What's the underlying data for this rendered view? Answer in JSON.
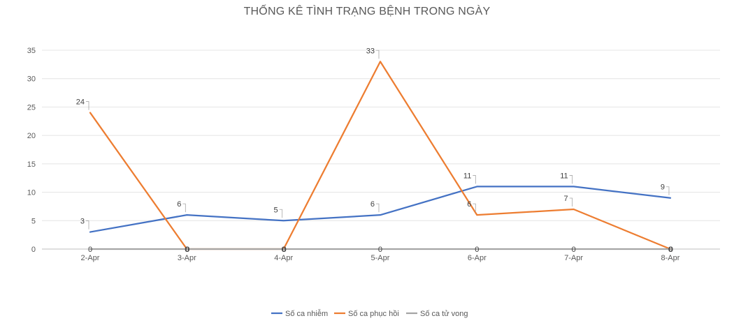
{
  "chart_data": {
    "type": "line",
    "title": "THỐNG KÊ TÌNH TRẠNG BỆNH TRONG NGÀY",
    "categories": [
      "2-Apr",
      "3-Apr",
      "4-Apr",
      "5-Apr",
      "6-Apr",
      "7-Apr",
      "8-Apr"
    ],
    "ylim": [
      0,
      35
    ],
    "yticks": [
      0,
      5,
      10,
      15,
      20,
      25,
      30,
      35
    ],
    "grid": true,
    "legend_position": "bottom",
    "series": [
      {
        "name": "Số ca nhiễm",
        "color": "#4472C4",
        "values": [
          3,
          6,
          5,
          6,
          11,
          11,
          9
        ]
      },
      {
        "name": "Số ca phục hồi",
        "color": "#ED7D31",
        "values": [
          24,
          0,
          0,
          33,
          6,
          7,
          0
        ]
      },
      {
        "name": "Số ca tử vong",
        "color": "#A5A5A5",
        "values": [
          0,
          0,
          0,
          0,
          0,
          0,
          0
        ]
      }
    ]
  }
}
